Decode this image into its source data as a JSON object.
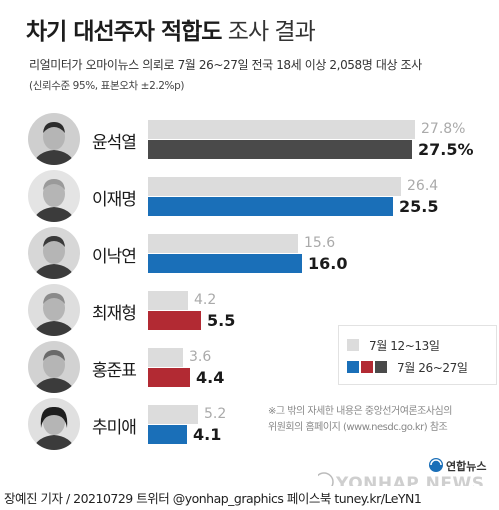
{
  "title": {
    "bold": "차기 대선주자 적합도",
    "light": "조사 결과"
  },
  "subtitle": "리얼미터가 오마이뉴스 의뢰로 7월 26~27일 전국 18세 이상 2,058명 대상 조사",
  "note": "(신뢰수준 95%, 표본오차 ±2.2%p)",
  "chart_data": {
    "type": "bar",
    "categories": [
      "윤석열",
      "이재명",
      "이낙연",
      "최재형",
      "홍준표",
      "추미애"
    ],
    "series": [
      {
        "name": "7월 12~13일",
        "values": [
          27.8,
          26.4,
          15.6,
          4.2,
          3.6,
          5.2
        ],
        "labels": [
          "27.8%",
          "26.4",
          "15.6",
          "4.2",
          "3.6",
          "5.2"
        ]
      },
      {
        "name": "7월 26~27일",
        "values": [
          27.5,
          25.5,
          16.0,
          5.5,
          4.4,
          4.1
        ],
        "labels": [
          "27.5%",
          "25.5",
          "16.0",
          "5.5",
          "4.4",
          "4.1"
        ]
      }
    ],
    "current_colors": [
      "#4a4a4a",
      "#1a6fb8",
      "#1a6fb8",
      "#b22a33",
      "#b22a33",
      "#1a6fb8"
    ],
    "previous_color": "#dcdcdc",
    "xlim": [
      0,
      30
    ],
    "orientation": "horizontal",
    "legend_position": "right"
  },
  "legend": {
    "prev_label": "7월 12~13일",
    "curr_label": "7월 26~27일",
    "curr_swatches": [
      "#1a6fb8",
      "#b22a33",
      "#4a4a4a"
    ]
  },
  "footnote": {
    "line1": "※그 밖의 자세한 내용은 중앙선거여론조사심의",
    "line2": "위원회의 홈페이지 (www.nesdc.go.kr) 참조"
  },
  "logo": {
    "text": "YONHAP NEWS",
    "korean": "연합뉴스"
  },
  "footer": "장예진 기자 / 20210729 트위터 @yonhap_graphics  페이스북 tuney.kr/LeYN1"
}
